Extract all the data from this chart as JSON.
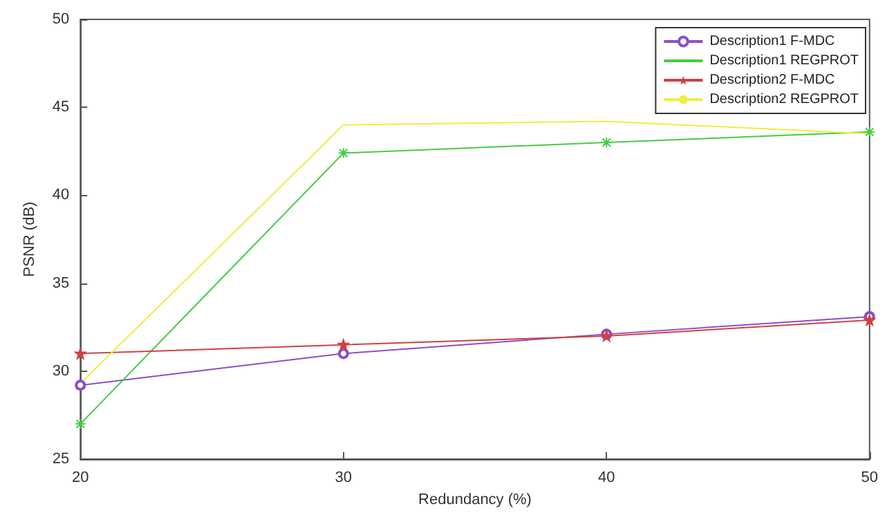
{
  "chart_data": {
    "type": "line",
    "xlabel": "Redundancy (%)",
    "ylabel": "PSNR (dB)",
    "x": [
      20,
      30,
      40,
      50
    ],
    "series": [
      {
        "name": "Description1 F-MDC",
        "color": "#8a4fc8",
        "marker": "circle",
        "values": [
          29.2,
          31.0,
          32.1,
          33.1
        ]
      },
      {
        "name": "Description1 REGPROT",
        "color": "#44cc44",
        "marker": "cross",
        "values": [
          27.0,
          42.4,
          43.0,
          43.6
        ]
      },
      {
        "name": "Description2 F-MDC",
        "color": "#d04040",
        "marker": "star",
        "values": [
          31.0,
          31.5,
          32.0,
          32.9
        ]
      },
      {
        "name": "Description2 REGPROT",
        "color": "#eeee44",
        "marker": "none",
        "values": [
          29.3,
          44.0,
          44.2,
          43.5
        ]
      }
    ],
    "xlim": [
      20,
      50
    ],
    "xticks": [
      20,
      30,
      40,
      50
    ],
    "ylim": [
      25,
      50
    ],
    "yticks": [
      25,
      30,
      35,
      40,
      45,
      50
    ],
    "grid": false,
    "legend": "top right"
  }
}
